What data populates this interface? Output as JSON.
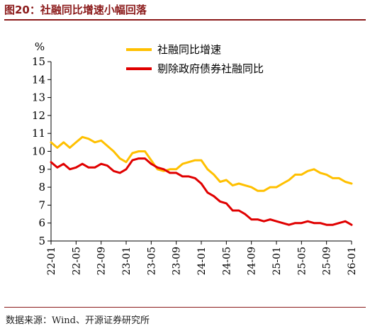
{
  "figure_title": "图20：社融同比增速小幅回落",
  "source_note": "数据来源：Wind、开源证券研究所",
  "colors": {
    "title": "#8b1a1a",
    "series_1": "#ffc000",
    "series_2": "#e00000"
  },
  "chart_data": {
    "type": "line",
    "ylabel": "%",
    "ylim": [
      5,
      15
    ],
    "yticks": [
      "5",
      "6",
      "7",
      "8",
      "9",
      "10",
      "11",
      "12",
      "13",
      "14",
      "15"
    ],
    "xlim": [
      "22-01",
      "26-01"
    ],
    "xticks": [
      "22-01",
      "22-05",
      "22-09",
      "23-01",
      "23-05",
      "23-09",
      "24-01",
      "24-05",
      "24-09",
      "25-01",
      "25-05",
      "25-09",
      "26-01"
    ],
    "grid": false,
    "legend_position": "top-right",
    "x": [
      "22-01",
      "22-02",
      "22-03",
      "22-04",
      "22-05",
      "22-06",
      "22-07",
      "22-08",
      "22-09",
      "22-10",
      "22-11",
      "22-12",
      "23-01",
      "23-02",
      "23-03",
      "23-04",
      "23-05",
      "23-06",
      "23-07",
      "23-08",
      "23-09",
      "23-10",
      "23-11",
      "23-12",
      "24-01",
      "24-02",
      "24-03",
      "24-04",
      "24-05",
      "24-06",
      "24-07",
      "24-08",
      "24-09",
      "24-10",
      "24-11",
      "24-12",
      "25-01",
      "25-02",
      "25-03",
      "25-04",
      "25-05",
      "25-06",
      "25-07",
      "25-08",
      "25-09",
      "25-10",
      "25-11",
      "25-12",
      "26-01"
    ],
    "series": [
      {
        "name": "社融同比增速",
        "values": [
          10.5,
          10.2,
          10.5,
          10.2,
          10.5,
          10.8,
          10.7,
          10.5,
          10.6,
          10.3,
          10.0,
          9.6,
          9.4,
          9.9,
          10.0,
          10.0,
          9.5,
          9.0,
          8.9,
          9.0,
          9.0,
          9.3,
          9.4,
          9.5,
          9.5,
          9.0,
          8.7,
          8.3,
          8.4,
          8.1,
          8.2,
          8.1,
          8.0,
          7.8,
          7.8,
          8.0,
          8.0,
          8.2,
          8.4,
          8.7,
          8.7,
          8.9,
          9.0,
          8.8,
          8.7,
          8.5,
          8.5,
          8.3,
          8.2
        ]
      },
      {
        "name": "剔除政府债券社融同比",
        "values": [
          9.4,
          9.1,
          9.3,
          9.0,
          9.1,
          9.3,
          9.1,
          9.1,
          9.3,
          9.2,
          8.9,
          8.8,
          9.0,
          9.5,
          9.6,
          9.6,
          9.3,
          9.1,
          9.0,
          8.8,
          8.8,
          8.6,
          8.6,
          8.5,
          8.2,
          7.7,
          7.5,
          7.2,
          7.1,
          6.7,
          6.7,
          6.5,
          6.2,
          6.2,
          6.1,
          6.2,
          6.1,
          6.0,
          5.9,
          6.0,
          6.0,
          6.1,
          6.0,
          6.0,
          5.9,
          5.9,
          6.0,
          6.1,
          5.9
        ]
      }
    ]
  }
}
